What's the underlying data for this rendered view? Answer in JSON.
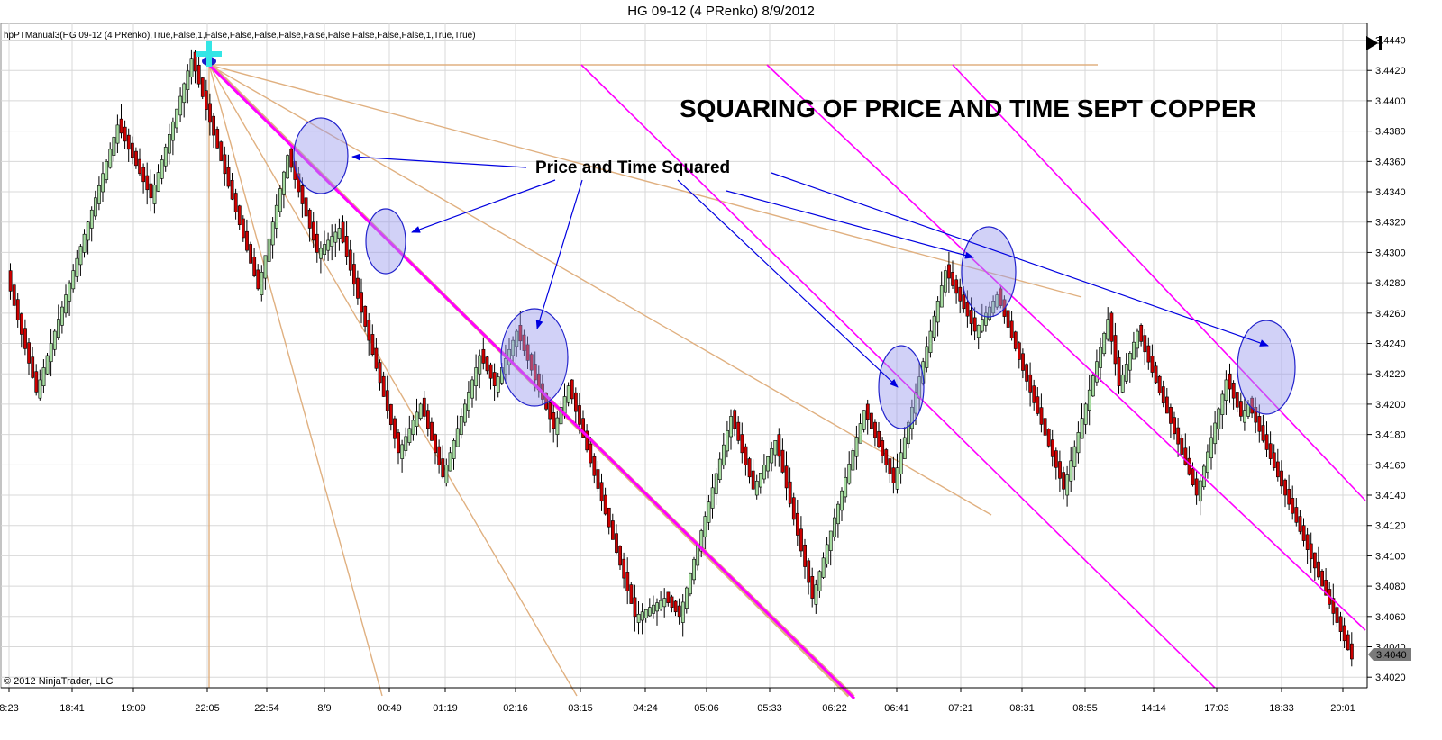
{
  "window_title": "HG 09-12 (4 PRenko)  8/9/2012",
  "indicator_label": "hpPTManual3(HG 09-12 (4 PRenko),True,False,1,False,False,False,False,False,False,False,False,False,1,True,True)",
  "copyright": "© 2012 NinjaTrader, LLC",
  "heading": "SQUARING OF PRICE AND TIME SEPT COPPER",
  "annotation": "Price and Time Squared",
  "last_price": "3.4040",
  "play_to_end_icon": "skip-to-end-icon",
  "colors": {
    "up_bar": "#a6dba0",
    "down_bar": "#cc0000",
    "gann_fan": "#e0b080",
    "magenta": "#ff00ff",
    "arrow": "#0000e0",
    "ellipse_fill": "#9999ee",
    "crosshair": "#33e6e6"
  },
  "chart_data": {
    "type": "candlestick",
    "title": "HG 09-12 (4 PRenko)  8/9/2012",
    "x_tick_labels": [
      "8:23",
      "18:41",
      "19:09",
      "22:05",
      "22:54",
      "8/9",
      "00:49",
      "01:19",
      "02:16",
      "03:15",
      "04:24",
      "05:06",
      "05:33",
      "06:22",
      "06:41",
      "07:21",
      "08:31",
      "08:55",
      "14:14",
      "17:03",
      "18:33",
      "20:01"
    ],
    "y_ticks": [
      "3.4020",
      "3.4040",
      "3.4060",
      "3.4080",
      "3.4100",
      "3.4120",
      "3.4140",
      "3.4160",
      "3.4180",
      "3.4200",
      "3.4220",
      "3.4240",
      "3.4260",
      "3.4280",
      "3.4300",
      "3.4320",
      "3.4340",
      "3.4360",
      "3.4380",
      "3.4400",
      "3.4420",
      "3.4440"
    ],
    "ylim": [
      3.4013,
      3.4451
    ],
    "swing_path": [
      [
        0,
        3.4284
      ],
      [
        8,
        3.4208
      ],
      [
        30,
        3.4384
      ],
      [
        39,
        3.4336
      ],
      [
        50,
        3.4428
      ],
      [
        68,
        3.4276
      ],
      [
        76,
        3.4364
      ],
      [
        84,
        3.43
      ],
      [
        90,
        3.4316
      ],
      [
        106,
        3.4168
      ],
      [
        112,
        3.42
      ],
      [
        118,
        3.4152
      ],
      [
        128,
        3.4232
      ],
      [
        132,
        3.4212
      ],
      [
        138,
        3.4248
      ],
      [
        148,
        3.4184
      ],
      [
        152,
        3.4212
      ],
      [
        170,
        3.406
      ],
      [
        178,
        3.4072
      ],
      [
        182,
        3.406
      ],
      [
        196,
        3.4192
      ],
      [
        202,
        3.4144
      ],
      [
        208,
        3.4176
      ],
      [
        218,
        3.4072
      ],
      [
        232,
        3.4196
      ],
      [
        240,
        3.4148
      ],
      [
        254,
        3.4288
      ],
      [
        262,
        3.4248
      ],
      [
        268,
        3.4272
      ],
      [
        286,
        3.4144
      ],
      [
        298,
        3.4256
      ],
      [
        301,
        3.4212
      ],
      [
        306,
        3.4248
      ],
      [
        322,
        3.414
      ],
      [
        330,
        3.4216
      ],
      [
        334,
        3.4192
      ],
      [
        336,
        3.42
      ],
      [
        364,
        3.4032
      ]
    ],
    "last_price": 3.404
  }
}
